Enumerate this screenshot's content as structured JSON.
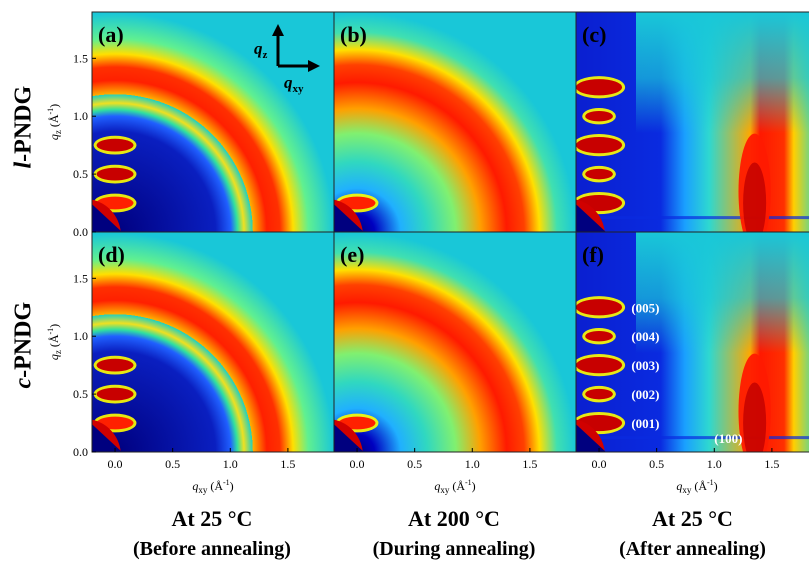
{
  "figure": {
    "row_labels": [
      {
        "prefix": "l",
        "suffix": "-PNDG"
      },
      {
        "prefix": "c",
        "suffix": "-PNDG"
      }
    ],
    "columns": [
      {
        "main": "At 25 °C",
        "sub": "(Before annealing)"
      },
      {
        "main": "At 200 °C",
        "sub": "(During annealing)"
      },
      {
        "main": "At 25 °C",
        "sub": "(After annealing)"
      }
    ],
    "inset_axes": {
      "qz": "q",
      "qz_sub": "z",
      "qxy": "q",
      "qxy_sub": "xy"
    }
  },
  "chart_data": {
    "type": "heatmap",
    "description_type": "2D GIWAXS patterns (3 x 2 grid)",
    "xlabel": "q",
    "xlabel_sub": "xy",
    "ylabel": "q",
    "ylabel_sub": "z",
    "unit": "(Å",
    "unit_exp": "-1",
    "unit_close": ")",
    "xlim": [
      -0.2,
      1.9
    ],
    "ylim": [
      0.0,
      1.9
    ],
    "x_ticks": [
      "0.0",
      "0.5",
      "1.0",
      "1.5"
    ],
    "y_ticks": [
      "0.0",
      "0.5",
      "1.0",
      "1.5"
    ],
    "colormap": [
      "#00007f",
      "#0000ff",
      "#00ffff",
      "#ffff00",
      "#ff0000",
      "#7f0000"
    ],
    "panels": [
      {
        "label": "(a)",
        "ring_q": [
          1.45,
          1.1
        ],
        "lamellar_qz": [
          0.25,
          0.5,
          0.75
        ],
        "peak_100_qxy": null,
        "peak_labels": []
      },
      {
        "label": "(b)",
        "ring_q": [
          1.45
        ],
        "lamellar_qz": [
          0.25
        ],
        "peak_100_qxy": null,
        "peak_labels": []
      },
      {
        "label": "(c)",
        "ring_q": [],
        "lamellar_qz": [
          0.25,
          0.5,
          0.75,
          1.0,
          1.25
        ],
        "peak_100_qxy": 1.35,
        "peak_labels": []
      },
      {
        "label": "(d)",
        "ring_q": [
          1.45,
          1.1
        ],
        "lamellar_qz": [
          0.25,
          0.5,
          0.75
        ],
        "peak_100_qxy": null,
        "peak_labels": []
      },
      {
        "label": "(e)",
        "ring_q": [
          1.45
        ],
        "lamellar_qz": [
          0.25
        ],
        "peak_100_qxy": null,
        "peak_labels": []
      },
      {
        "label": "(f)",
        "ring_q": [],
        "lamellar_qz": [
          0.25,
          0.5,
          0.75,
          1.0,
          1.25
        ],
        "peak_100_qxy": 1.35,
        "peak_labels": [
          {
            "text": "(005)",
            "qxy": 0.28,
            "qz": 1.25
          },
          {
            "text": "(004)",
            "qxy": 0.28,
            "qz": 1.0
          },
          {
            "text": "(003)",
            "qxy": 0.28,
            "qz": 0.75
          },
          {
            "text": "(002)",
            "qxy": 0.28,
            "qz": 0.5
          },
          {
            "text": "(001)",
            "qxy": 0.28,
            "qz": 0.25
          },
          {
            "text": "(100)",
            "qxy": 1.0,
            "qz": 0.12
          }
        ]
      }
    ]
  }
}
